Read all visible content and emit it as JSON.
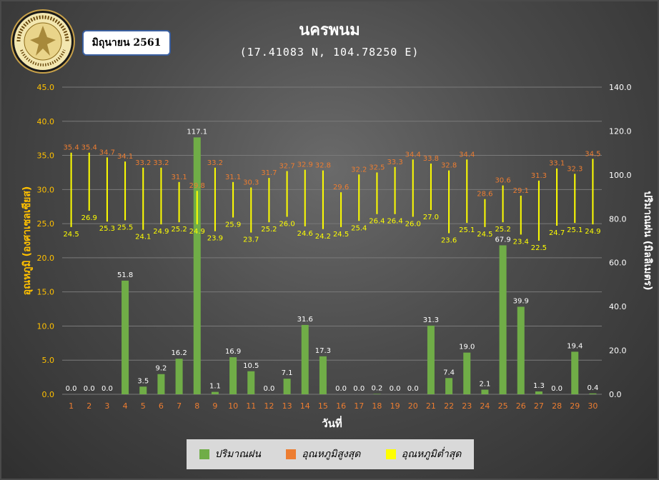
{
  "header": {
    "title": "นครพนม",
    "subtitle": "(17.41083 N, 104.78250 E)",
    "month_label": "มิถุนายน 2561",
    "logo_text": "กรมอุตุนิยมวิทยา METEOROLOGICAL DEPARTMENT"
  },
  "colors": {
    "rain": "#70ad47",
    "tmax": "#ed7d31",
    "tmin": "#ffff00",
    "left_axis": "#ffc000",
    "x_tick": "#ed7d31",
    "grid": "#7a7a7a"
  },
  "chart_data": {
    "type": "bar",
    "x": [
      1,
      2,
      3,
      4,
      5,
      6,
      7,
      8,
      9,
      10,
      11,
      12,
      13,
      14,
      15,
      16,
      17,
      18,
      19,
      20,
      21,
      22,
      23,
      24,
      25,
      26,
      27,
      28,
      29,
      30
    ],
    "xlabel": "วันที่",
    "ylabel_left": "อุณหภูมิ (องศาเซลเซียส)",
    "ylabel_right": "ปริมาณฝน (มิลลิเมตร)",
    "ylim_left": [
      0,
      45
    ],
    "ylim_right": [
      0,
      140
    ],
    "yticks_left": [
      "0.0",
      "5.0",
      "10.0",
      "15.0",
      "20.0",
      "25.0",
      "30.0",
      "35.0",
      "40.0",
      "45.0"
    ],
    "yticks_right": [
      "0.0",
      "20.0",
      "40.0",
      "60.0",
      "80.0",
      "100.0",
      "120.0",
      "140.0"
    ],
    "grid": true,
    "legend_position": "bottom",
    "series": [
      {
        "name": "ปริมาณฝน",
        "axis": "right",
        "kind": "bar",
        "values": [
          0.0,
          0.0,
          0.0,
          51.8,
          3.5,
          9.2,
          16.2,
          117.1,
          1.1,
          16.9,
          10.5,
          0.0,
          7.1,
          31.6,
          17.3,
          0.0,
          0.0,
          0.2,
          0.0,
          0.0,
          31.3,
          7.4,
          19.0,
          2.1,
          67.9,
          39.9,
          1.3,
          0.0,
          19.4,
          0.4
        ]
      },
      {
        "name": "อุณหภูมิสูงสุด",
        "axis": "left",
        "kind": "range-high",
        "values": [
          35.4,
          35.4,
          34.7,
          34.1,
          33.2,
          33.2,
          31.1,
          29.8,
          33.2,
          31.1,
          30.3,
          31.7,
          32.7,
          32.9,
          32.8,
          29.6,
          32.2,
          32.5,
          33.3,
          34.4,
          33.8,
          32.8,
          34.4,
          28.6,
          30.6,
          29.1,
          31.3,
          33.1,
          32.3,
          34.5
        ]
      },
      {
        "name": "อุณหภูมิต่ำสุด",
        "axis": "left",
        "kind": "range-low",
        "values": [
          24.5,
          26.9,
          25.3,
          25.5,
          24.1,
          24.9,
          25.2,
          24.9,
          23.9,
          25.9,
          23.7,
          25.2,
          26.0,
          24.6,
          24.2,
          24.5,
          25.4,
          26.4,
          26.4,
          26.0,
          27.0,
          23.6,
          25.1,
          24.5,
          25.2,
          23.4,
          22.5,
          24.7,
          25.1,
          24.9
        ]
      }
    ]
  }
}
